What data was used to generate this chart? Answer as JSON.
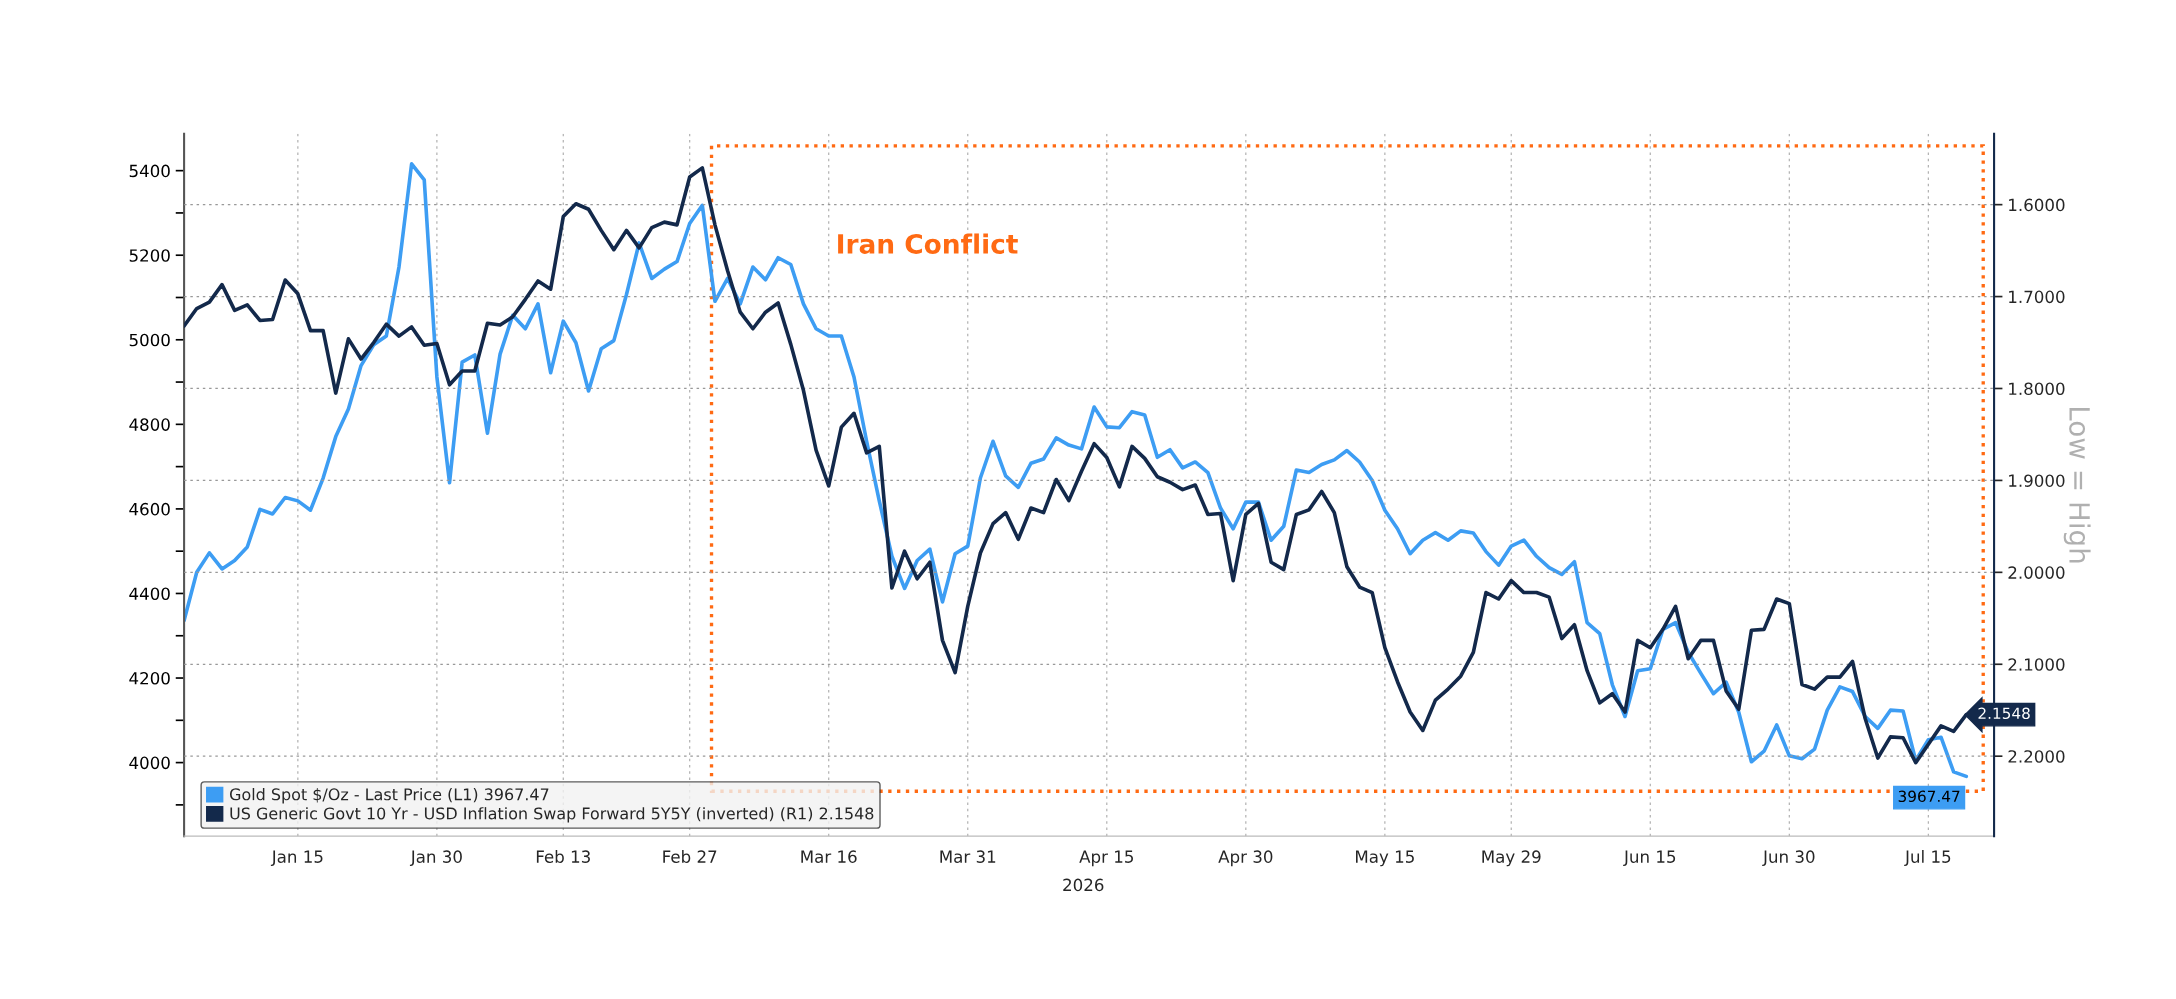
{
  "chart_data": {
    "type": "line",
    "categories": [
      null,
      null,
      null,
      null,
      null,
      null,
      null,
      null,
      null,
      "Jan 15",
      null,
      null,
      null,
      null,
      null,
      null,
      null,
      null,
      null,
      null,
      "Jan 30",
      null,
      null,
      null,
      null,
      null,
      null,
      null,
      null,
      null,
      "Feb 13",
      null,
      null,
      null,
      null,
      null,
      null,
      null,
      null,
      null,
      "Feb 27",
      null,
      null,
      null,
      null,
      null,
      null,
      null,
      null,
      null,
      null,
      "Mar 16",
      null,
      null,
      null,
      null,
      null,
      null,
      null,
      null,
      null,
      null,
      "Mar 31",
      null,
      null,
      null,
      null,
      null,
      null,
      null,
      null,
      null,
      null,
      "Apr 15",
      null,
      null,
      null,
      null,
      null,
      null,
      null,
      null,
      null,
      null,
      "Apr 30",
      null,
      null,
      null,
      null,
      null,
      null,
      null,
      null,
      null,
      null,
      "May 15",
      null,
      null,
      null,
      null,
      null,
      null,
      null,
      null,
      null,
      "May 29",
      null,
      null,
      null,
      null,
      null,
      null,
      null,
      null,
      null,
      null,
      "Jun 15",
      null,
      null,
      null,
      null,
      null,
      null,
      null,
      null,
      null,
      null,
      "Jun 30",
      null,
      null,
      null,
      null,
      null,
      null,
      null,
      null,
      null,
      null,
      "Jul 15",
      null,
      null,
      null
    ],
    "xlabel": "2026",
    "y2label": "Low = High",
    "series": [
      {
        "name": "Gold Spot $/Oz - Last Price (L1) 3967.47",
        "color": "#3d9df3",
        "values": [
          4336,
          4450,
          4496,
          4458,
          4478,
          4510,
          4599,
          4588,
          4627,
          4619,
          4597,
          4673,
          4771,
          4836,
          4939,
          4988,
          5009,
          5172,
          5416,
          5378,
          4912,
          4662,
          4947,
          4964,
          4779,
          4966,
          5058,
          5026,
          5085,
          4922,
          5044,
          4993,
          4879,
          4979,
          4998,
          5107,
          5229,
          5145,
          5167,
          5185,
          5275,
          5318,
          5091,
          5145,
          5085,
          5172,
          5142,
          5194,
          5178,
          5085,
          5026,
          5009,
          5009,
          4912,
          4760,
          4619,
          4488,
          4412,
          4478,
          4505,
          4380,
          4494,
          4512,
          4673,
          4760,
          4678,
          4651,
          4708,
          4718,
          4768,
          4751,
          4742,
          4841,
          4794,
          4792,
          4830,
          4822,
          4722,
          4740,
          4697,
          4711,
          4686,
          4602,
          4553,
          4616,
          4616,
          4526,
          4559,
          4692,
          4686,
          4705,
          4716,
          4738,
          4711,
          4667,
          4597,
          4553,
          4494,
          4526,
          4544,
          4526,
          4548,
          4543,
          4499,
          4467,
          4512,
          4526,
          4488,
          4461,
          4445,
          4475,
          4331,
          4305,
          4184,
          4109,
          4217,
          4222,
          4315,
          4331,
          4261,
          4211,
          4163,
          4190,
          4119,
          4002,
          4027,
          4089,
          4016,
          4009,
          4032,
          4124,
          4179,
          4168,
          4109,
          4081,
          4124,
          4122,
          4005,
          4054,
          4060,
          3978,
          3967.47
        ],
        "value_labels": [
          null,
          null,
          null,
          null,
          null,
          null,
          null,
          null,
          null,
          null,
          null,
          null,
          null,
          null,
          null,
          null,
          null,
          null,
          null,
          null,
          null,
          null,
          null,
          null,
          null,
          null,
          null,
          null,
          null,
          null,
          null,
          null,
          null,
          null,
          null,
          null,
          null,
          null,
          null,
          null,
          null,
          null,
          null,
          null,
          null,
          null,
          null,
          null,
          null,
          null,
          null,
          null,
          null,
          null,
          null,
          null,
          null,
          null,
          null,
          null,
          null,
          null,
          null,
          null,
          null,
          null,
          null,
          null,
          null,
          null,
          null,
          null,
          null,
          null,
          null,
          null,
          null,
          null,
          null,
          null,
          null,
          null,
          null,
          null,
          null,
          null,
          null,
          null,
          null,
          null,
          null,
          null,
          null,
          null,
          null,
          null,
          null,
          null,
          null,
          null,
          null,
          null,
          null,
          null,
          null,
          null,
          null,
          null,
          null,
          null,
          null,
          null,
          null,
          null,
          null,
          null,
          null,
          null,
          null,
          null,
          null,
          null,
          null,
          null,
          null,
          null,
          null,
          null,
          null,
          null,
          null,
          null,
          null,
          null,
          null,
          null,
          null,
          null,
          null,
          null,
          null,
          "3967.47"
        ]
      },
      {
        "name": "US Generic Govt 10 Yr - USD Inflation Swap Forward 5Y5Y (inverted) (R1) 2.1548",
        "color": "#13294b",
        "axis": "y2",
        "values": [
          1.732,
          1.713,
          1.706,
          1.687,
          1.715,
          1.709,
          1.726,
          1.725,
          1.682,
          1.697,
          1.737,
          1.737,
          1.805,
          1.746,
          1.768,
          1.75,
          1.73,
          1.743,
          1.733,
          1.753,
          1.751,
          1.796,
          1.781,
          1.781,
          1.729,
          1.731,
          1.722,
          1.703,
          1.683,
          1.692,
          1.613,
          1.599,
          1.605,
          1.628,
          1.649,
          1.628,
          1.647,
          1.625,
          1.619,
          1.622,
          1.57,
          1.56,
          1.622,
          1.672,
          1.717,
          1.735,
          1.717,
          1.707,
          1.752,
          1.802,
          1.867,
          1.906,
          1.842,
          1.827,
          1.87,
          1.863,
          2.017,
          1.977,
          2.007,
          1.989,
          2.074,
          2.109,
          2.037,
          1.979,
          1.947,
          1.935,
          1.964,
          1.93,
          1.935,
          1.899,
          1.922,
          1.89,
          1.86,
          1.875,
          1.907,
          1.863,
          1.876,
          1.896,
          1.902,
          1.91,
          1.905,
          1.937,
          1.936,
          2.009,
          1.937,
          1.925,
          1.989,
          1.997,
          1.937,
          1.932,
          1.912,
          1.935,
          1.994,
          2.016,
          2.022,
          2.082,
          2.119,
          2.152,
          2.172,
          2.139,
          2.127,
          2.113,
          2.087,
          2.022,
          2.029,
          2.009,
          2.022,
          2.022,
          2.027,
          2.072,
          2.057,
          2.107,
          2.142,
          2.132,
          2.152,
          2.074,
          2.082,
          2.062,
          2.037,
          2.094,
          2.074,
          2.074,
          2.129,
          2.149,
          2.063,
          2.062,
          2.029,
          2.034,
          2.122,
          2.127,
          2.114,
          2.114,
          2.097,
          2.159,
          2.202,
          2.179,
          2.18,
          2.207,
          2.187,
          2.167,
          2.173,
          2.1548
        ],
        "value_labels": [
          null,
          null,
          null,
          null,
          null,
          null,
          null,
          null,
          null,
          null,
          null,
          null,
          null,
          null,
          null,
          null,
          null,
          null,
          null,
          null,
          null,
          null,
          null,
          null,
          null,
          null,
          null,
          null,
          null,
          null,
          null,
          null,
          null,
          null,
          null,
          null,
          null,
          null,
          null,
          null,
          null,
          null,
          null,
          null,
          null,
          null,
          null,
          null,
          null,
          null,
          null,
          null,
          null,
          null,
          null,
          null,
          null,
          null,
          null,
          null,
          null,
          null,
          null,
          null,
          null,
          null,
          null,
          null,
          null,
          null,
          null,
          null,
          null,
          null,
          null,
          null,
          null,
          null,
          null,
          null,
          null,
          null,
          null,
          null,
          null,
          null,
          null,
          null,
          null,
          null,
          null,
          null,
          null,
          null,
          null,
          null,
          null,
          null,
          null,
          null,
          null,
          null,
          null,
          null,
          null,
          null,
          null,
          null,
          null,
          null,
          null,
          null,
          null,
          null,
          null,
          null,
          null,
          null,
          null,
          null,
          null,
          null,
          null,
          null,
          null,
          null,
          null,
          null,
          null,
          null,
          null,
          null,
          null,
          null,
          null,
          null,
          null,
          null,
          null,
          null,
          null,
          "2.1548"
        ]
      }
    ],
    "ylim": [
      3826,
      5487
    ],
    "yticks": [
      {
        "value": 3900,
        "label": null
      },
      4000,
      {
        "value": 4100,
        "label": null
      },
      4200,
      {
        "value": 4300,
        "label": null
      },
      4400,
      {
        "value": 4500,
        "label": null
      },
      4600,
      {
        "value": 4700,
        "label": null
      },
      4800,
      {
        "value": 4900,
        "label": null
      },
      5000,
      {
        "value": 5100,
        "label": null
      },
      5200,
      {
        "value": 5300,
        "label": null
      },
      5400
    ],
    "y2lim": [
      2.287,
      1.523
    ],
    "y2ticks": [
      {
        "value": 1.6,
        "label": "1.6000"
      },
      {
        "value": 1.7,
        "label": "1.7000"
      },
      {
        "value": 1.8,
        "label": "1.8000"
      },
      {
        "value": 1.9,
        "label": "1.9000"
      },
      {
        "value": 2.0,
        "label": "2.0000"
      },
      {
        "value": 2.1,
        "label": "2.1000"
      },
      {
        "value": 2.2,
        "label": "2.2000"
      }
    ],
    "annotations": [
      "Iran Conflict"
    ],
    "grid": true,
    "legend": "bottom left",
    "line_style": "solid",
    "marker": "none"
  }
}
